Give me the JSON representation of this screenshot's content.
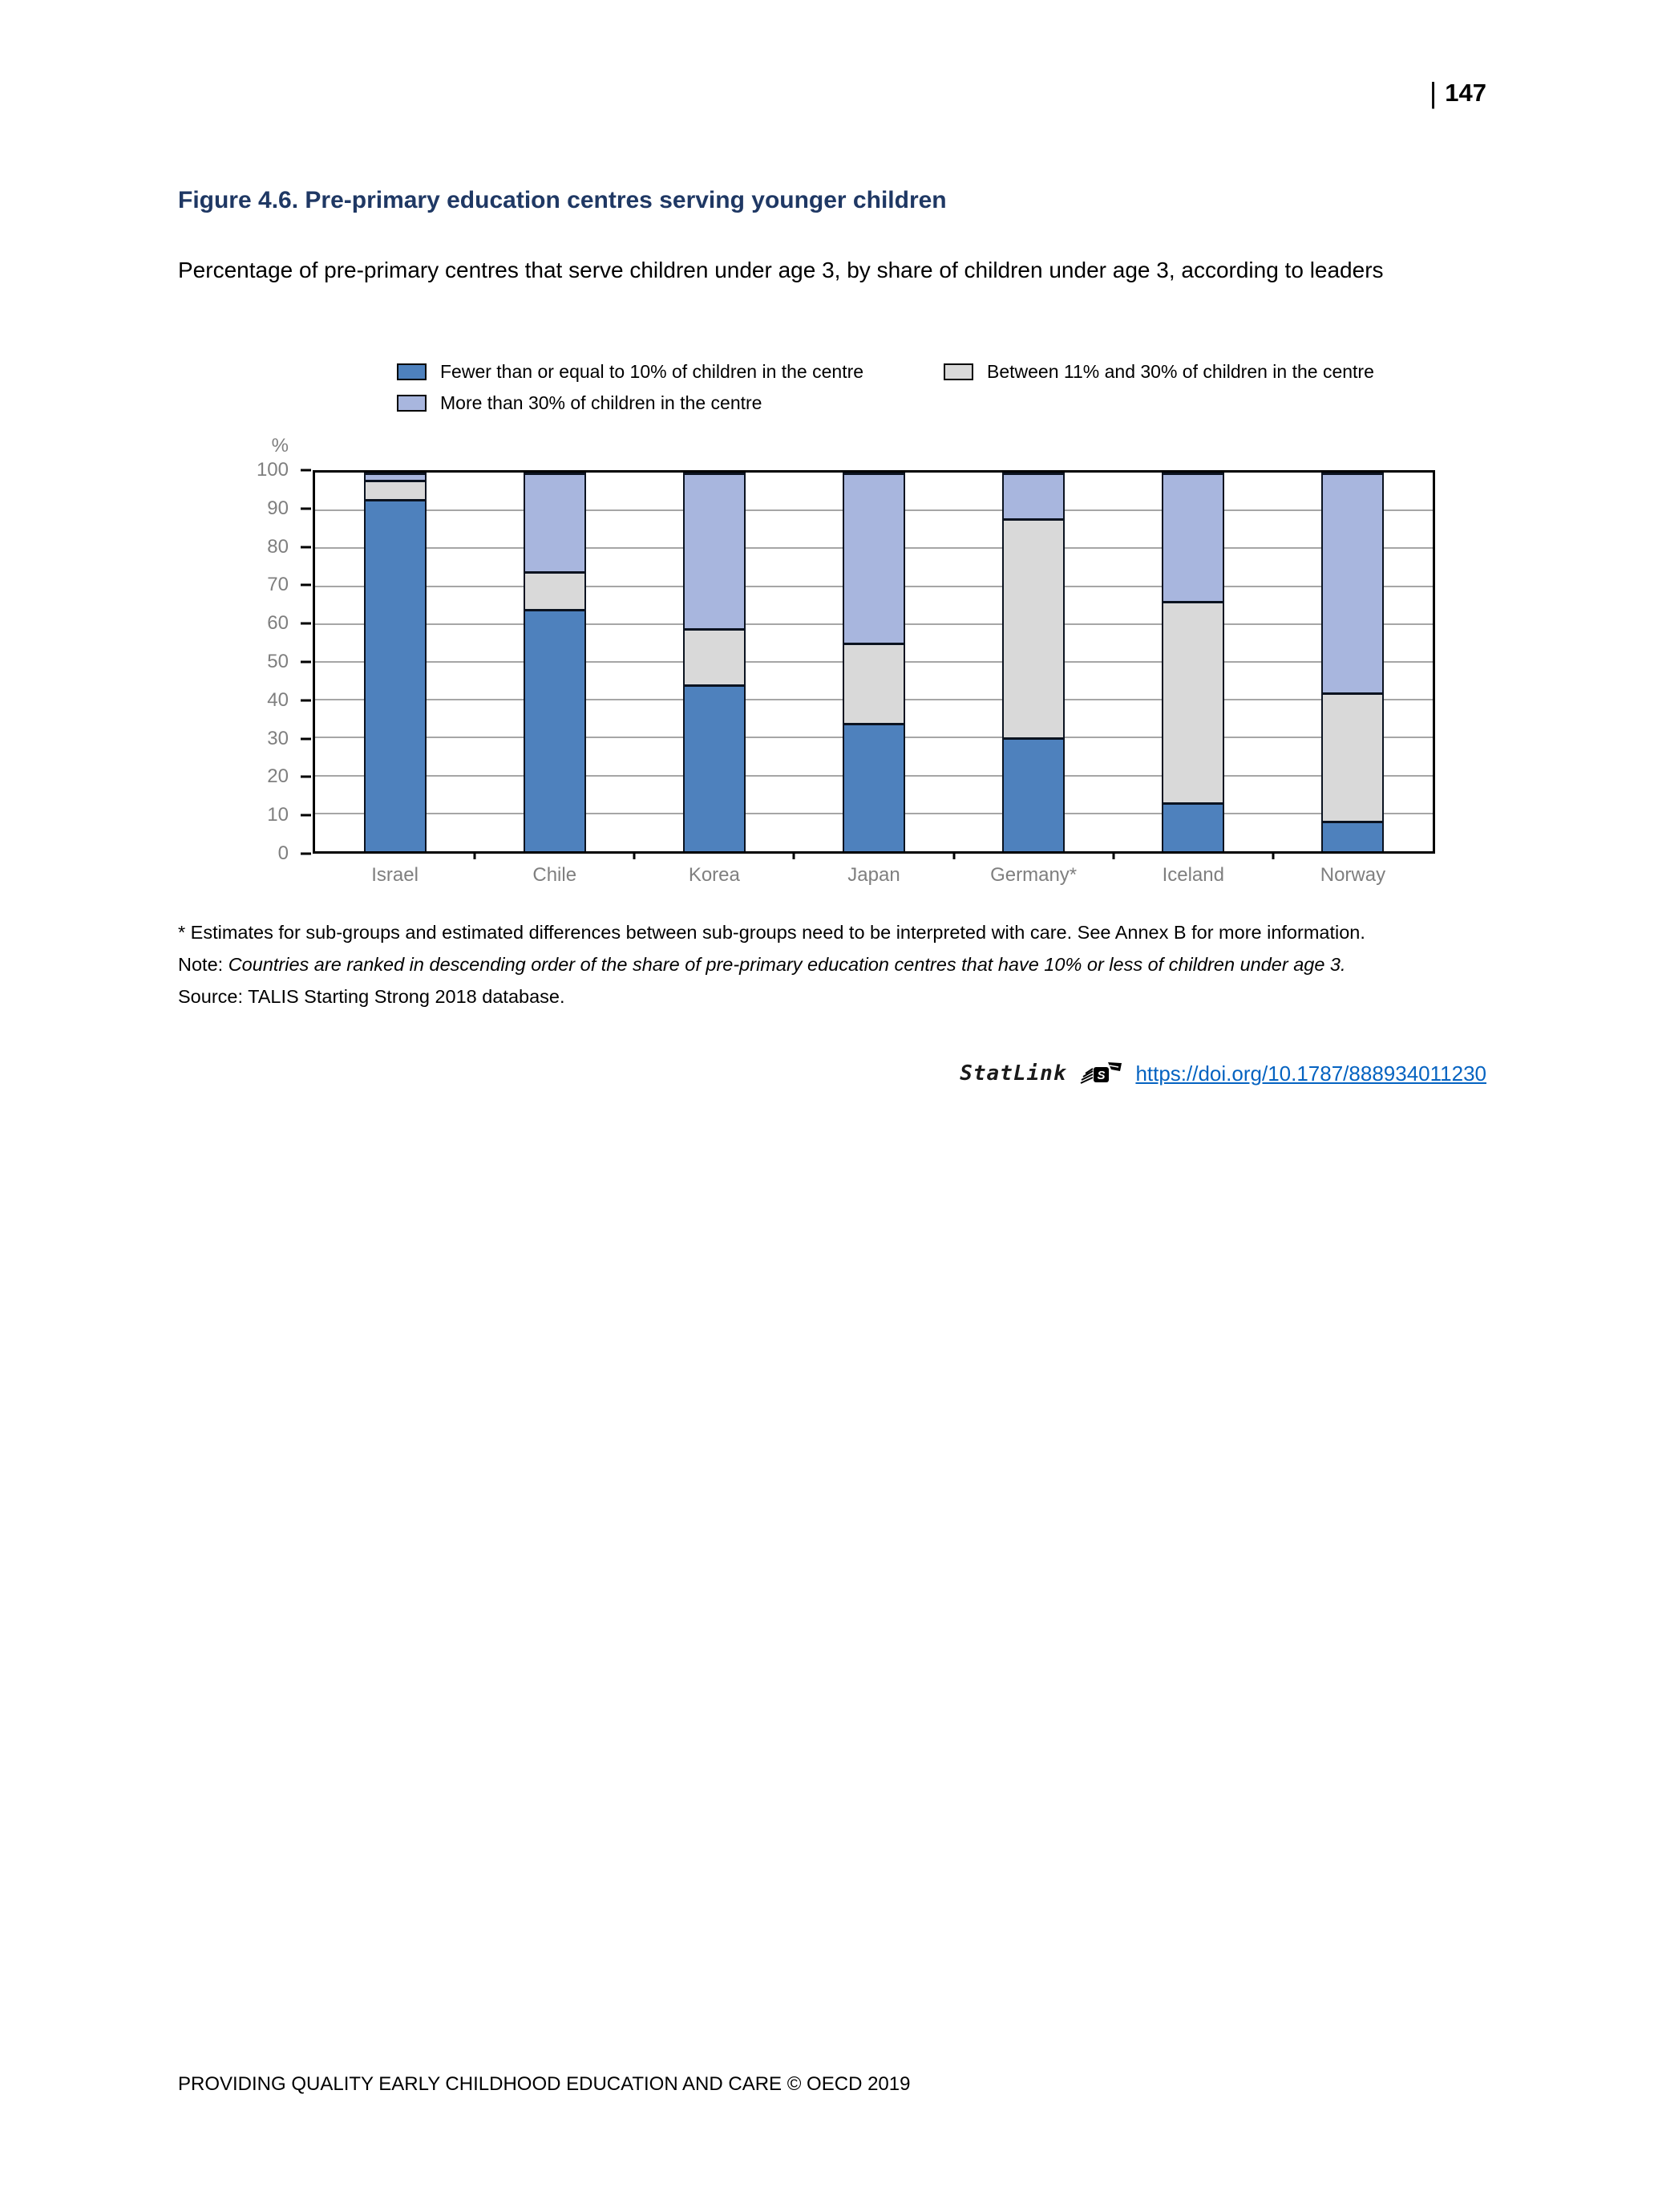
{
  "page": {
    "separator": "|",
    "number": "147",
    "footer": "PROVIDING QUALITY EARLY CHILDHOOD EDUCATION AND CARE © OECD 2019"
  },
  "figure": {
    "title": "Figure 4.6. Pre-primary education centres serving younger children",
    "subtitle": "Percentage of pre-primary centres that serve children under age 3, by share of children under age 3, according to leaders"
  },
  "legend": {
    "items": [
      {
        "label": "Fewer than or equal to 10% of children in the centre",
        "color": "#4E81BD"
      },
      {
        "label": "Between 11% and 30% of children in the centre",
        "color": "#D9D9D9"
      },
      {
        "label": "More than 30% of children in the centre",
        "color": "#A8B6DE"
      }
    ]
  },
  "chart_data": {
    "type": "bar",
    "stacked": true,
    "ylabel": "%",
    "ylim": [
      0,
      100
    ],
    "ytick_step": 10,
    "grid": "horizontal",
    "legend_position": "top",
    "categories": [
      "Israel",
      "Chile",
      "Korea",
      "Japan",
      "Germany*",
      "Iceland",
      "Norway"
    ],
    "series": [
      {
        "name": "Fewer than or equal to 10% of children in the centre",
        "color": "#4E81BD",
        "values": [
          93,
          64,
          44,
          34,
          30,
          13,
          8
        ]
      },
      {
        "name": "Between 11% and 30% of children in the centre",
        "color": "#D9D9D9",
        "values": [
          5,
          10,
          15,
          21,
          58,
          53,
          34
        ]
      },
      {
        "name": "More than 30% of children in the centre",
        "color": "#A8B6DE",
        "values": [
          2,
          26,
          41,
          45,
          12,
          34,
          58
        ]
      }
    ]
  },
  "notes": {
    "footnote": "* Estimates for sub-groups and estimated differences between sub-groups need to be interpreted with care. See Annex B for more information.",
    "note_label": "Note: ",
    "note_text": "Countries are ranked in descending order of the share of pre-primary education centres that have 10% or less of children under age 3.",
    "source_label": "Source: ",
    "source_text": "TALIS Starting Strong 2018 database."
  },
  "statlink": {
    "label": "StatLink",
    "url": "https://doi.org/10.1787/888934011230"
  }
}
